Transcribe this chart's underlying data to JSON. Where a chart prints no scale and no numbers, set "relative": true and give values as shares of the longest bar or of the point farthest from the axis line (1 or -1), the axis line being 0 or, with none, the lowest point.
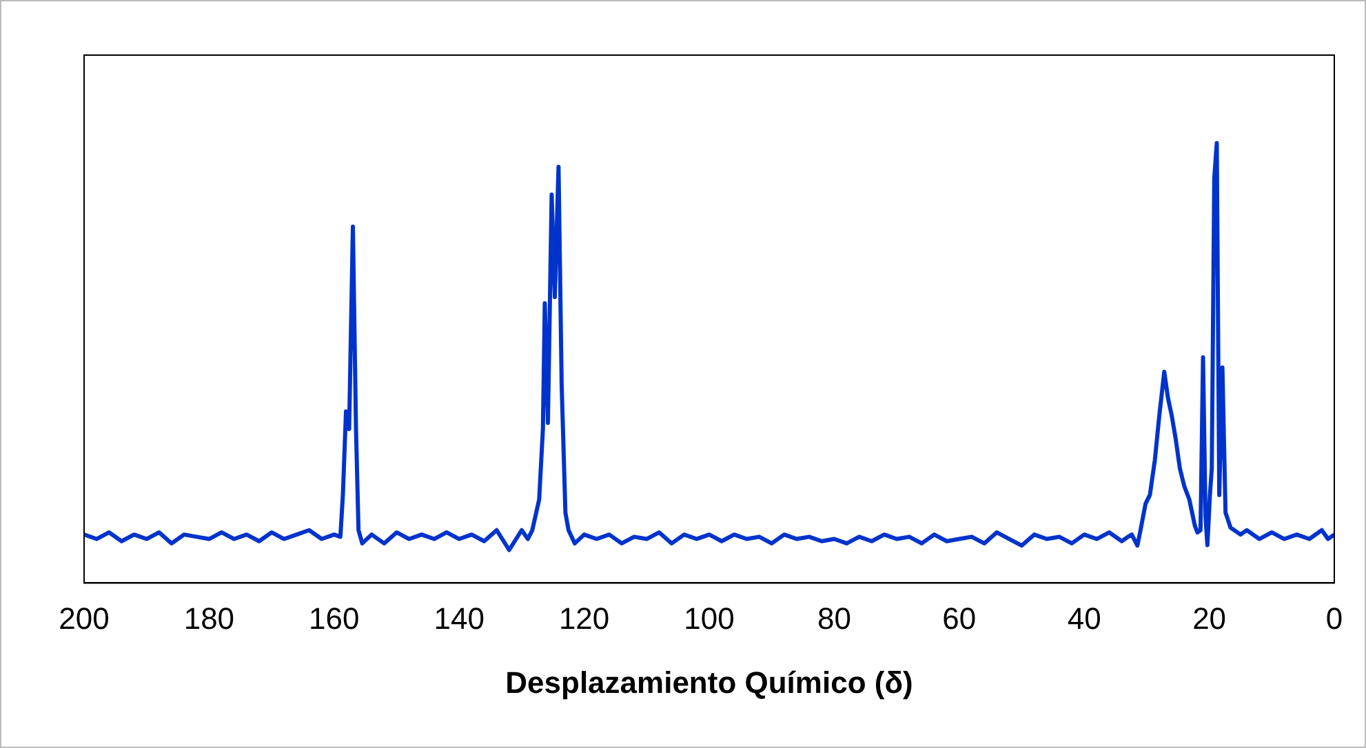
{
  "chart_data": {
    "type": "line",
    "xlabel": "Desplazamiento Químico (δ)",
    "relative": true,
    "xlim": [
      200,
      0
    ],
    "xticks": [
      200,
      180,
      160,
      140,
      120,
      100,
      80,
      60,
      40,
      20,
      0
    ],
    "grid": false,
    "legend": false,
    "marker": "none",
    "line_style": "solid",
    "tick_labels": "x",
    "x": [
      200,
      198,
      196,
      194,
      192,
      190,
      188,
      186,
      184,
      182,
      180,
      178,
      176,
      174,
      172,
      170,
      168,
      166,
      164,
      162,
      160,
      159,
      158.6,
      158.1,
      157.6,
      157.0,
      156.5,
      156.1,
      155.5,
      154,
      152,
      150,
      148,
      146,
      144,
      142,
      140,
      138,
      136,
      134,
      132,
      130,
      129,
      128.3,
      127.2,
      126.6,
      126.3,
      125.8,
      125.2,
      124.7,
      124.1,
      123.6,
      123.0,
      122.5,
      121.5,
      120,
      118,
      116,
      114,
      112,
      110,
      108,
      106,
      104,
      102,
      100,
      98,
      96,
      94,
      92,
      90,
      88,
      86,
      84,
      82,
      80,
      78,
      76,
      74,
      72,
      70,
      68,
      66,
      64,
      62,
      60,
      58,
      56,
      54,
      52,
      50,
      48,
      46,
      44,
      42,
      40,
      38,
      36,
      34,
      33,
      32.4,
      31.5,
      31,
      30.2,
      29.5,
      28.7,
      28,
      27.2,
      26.6,
      26.0,
      25.4,
      24.7,
      24,
      23.2,
      22.3,
      21.9,
      21.4,
      21.0,
      20.6,
      20.3,
      19.9,
      19.6,
      19.2,
      18.8,
      18.4,
      17.9,
      17.4,
      16.6,
      15,
      14,
      12,
      10,
      8,
      6,
      4,
      2,
      1,
      0
    ],
    "series": [
      {
        "color": "#0033cc",
        "values": [
          0.11,
          0.1,
          0.115,
          0.095,
          0.11,
          0.1,
          0.115,
          0.09,
          0.11,
          0.105,
          0.1,
          0.115,
          0.1,
          0.11,
          0.095,
          0.115,
          0.1,
          0.11,
          0.12,
          0.1,
          0.11,
          0.105,
          0.2,
          0.39,
          0.35,
          0.81,
          0.35,
          0.12,
          0.09,
          0.11,
          0.09,
          0.115,
          0.1,
          0.11,
          0.1,
          0.115,
          0.1,
          0.11,
          0.095,
          0.12,
          0.075,
          0.12,
          0.1,
          0.12,
          0.19,
          0.35,
          0.636,
          0.364,
          0.883,
          0.65,
          0.946,
          0.45,
          0.16,
          0.12,
          0.09,
          0.11,
          0.1,
          0.11,
          0.09,
          0.105,
          0.1,
          0.115,
          0.09,
          0.11,
          0.1,
          0.11,
          0.095,
          0.11,
          0.1,
          0.105,
          0.09,
          0.11,
          0.1,
          0.105,
          0.095,
          0.1,
          0.09,
          0.105,
          0.095,
          0.11,
          0.1,
          0.105,
          0.09,
          0.11,
          0.095,
          0.1,
          0.105,
          0.09,
          0.115,
          0.1,
          0.085,
          0.11,
          0.1,
          0.105,
          0.09,
          0.11,
          0.1,
          0.115,
          0.095,
          0.105,
          0.11,
          0.085,
          0.12,
          0.18,
          0.2,
          0.28,
          0.38,
          0.48,
          0.42,
          0.38,
          0.33,
          0.26,
          0.22,
          0.19,
          0.13,
          0.115,
          0.12,
          0.513,
          0.15,
          0.086,
          0.2,
          0.26,
          0.92,
          1,
          0.2,
          0.49,
          0.16,
          0.126,
          0.11,
          0.12,
          0.1,
          0.115,
          0.1,
          0.11,
          0.1,
          0.12,
          0.1,
          0.11
        ]
      }
    ]
  }
}
